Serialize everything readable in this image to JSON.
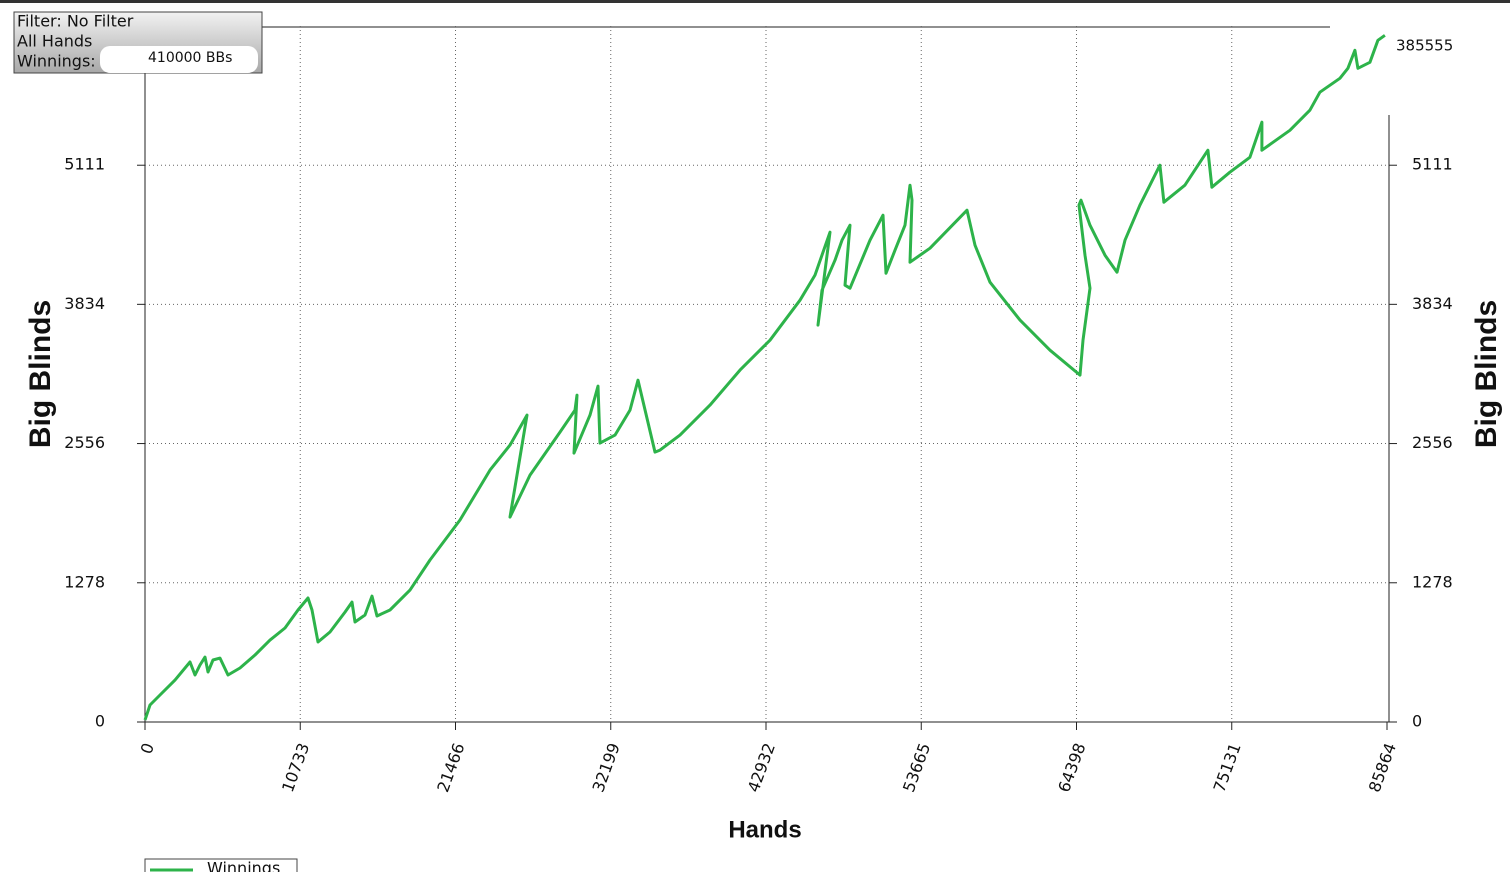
{
  "filter_box": {
    "lines": [
      "Filter: No Filter",
      "All Hands",
      "Winnings:",
      "410000 BBs"
    ]
  },
  "chart_data": {
    "type": "line",
    "x_label": "Hands",
    "y_label": "Big Blinds",
    "annotation": "385555",
    "xlim": [
      0,
      85864
    ],
    "xticks": [
      0,
      10733,
      21466,
      32199,
      42932,
      53665,
      64398,
      75131,
      85864
    ],
    "ylim": [
      0,
      6389
    ],
    "yticks": [
      0,
      1278,
      2556,
      3834,
      5111
    ],
    "grid": true,
    "legend": "bottom-left",
    "series": [
      {
        "name": "Winnings",
        "color": "#2db34a",
        "x": [
          0,
          346,
          1037,
          2074,
          3111,
          3457,
          3802,
          4148,
          4355,
          4701,
          5185,
          5738,
          6567,
          7604,
          8641,
          9678,
          10577,
          11268,
          11545,
          11959,
          12789,
          13826,
          14310,
          14517,
          15209,
          15693,
          16038,
          16937,
          18319,
          19702,
          21776,
          23850,
          25232,
          26408,
          25232,
          26615,
          28689,
          29726,
          29864,
          29657,
          30763,
          31316,
          31454,
          32491,
          33528,
          34081,
          35256,
          35602,
          36985,
          39058,
          41132,
          43206,
          45280,
          46317,
          47354,
          46525,
          46801,
          47700,
          48184,
          48737,
          48391,
          48737,
          50119,
          51018,
          51225,
          51848,
          52539,
          52884,
          53023,
          52884,
          54267,
          56825,
          57378,
          58415,
          60489,
          62563,
          64637,
          64845,
          65329,
          64983,
          64568,
          64706,
          65329,
          66366,
          67195,
          67748,
          68784,
          70167,
          70443,
          71895,
          73485,
          73762,
          75006,
          76389,
          77218,
          77218,
          79154,
          80536,
          81228,
          82610,
          83163,
          83647,
          83854,
          84684,
          85237,
          85721
        ],
        "values": [
          18,
          156,
          248,
          385,
          551,
          431,
          523,
          596,
          459,
          569,
          587,
          431,
          496,
          615,
          752,
          863,
          1028,
          1138,
          1028,
          734,
          826,
          1009,
          1101,
          918,
          982,
          1156,
          973,
          1028,
          1211,
          1487,
          1854,
          2312,
          2542,
          2817,
          1881,
          2266,
          2661,
          2863,
          3001,
          2468,
          2817,
          3083,
          2560,
          2634,
          2863,
          3138,
          2478,
          2496,
          2634,
          2909,
          3230,
          3505,
          3872,
          4102,
          4496,
          3643,
          3964,
          4239,
          4423,
          4560,
          4010,
          3982,
          4423,
          4652,
          4120,
          4331,
          4560,
          4928,
          4790,
          4221,
          4349,
          4698,
          4377,
          4037,
          3689,
          3413,
          3184,
          3505,
          3982,
          4285,
          4744,
          4790,
          4560,
          4285,
          4129,
          4423,
          4744,
          5111,
          4772,
          4928,
          5249,
          4909,
          5047,
          5184,
          5506,
          5249,
          5432,
          5616,
          5781,
          5909,
          6001,
          6166,
          6001,
          6056,
          6258,
          6304
        ]
      }
    ]
  }
}
